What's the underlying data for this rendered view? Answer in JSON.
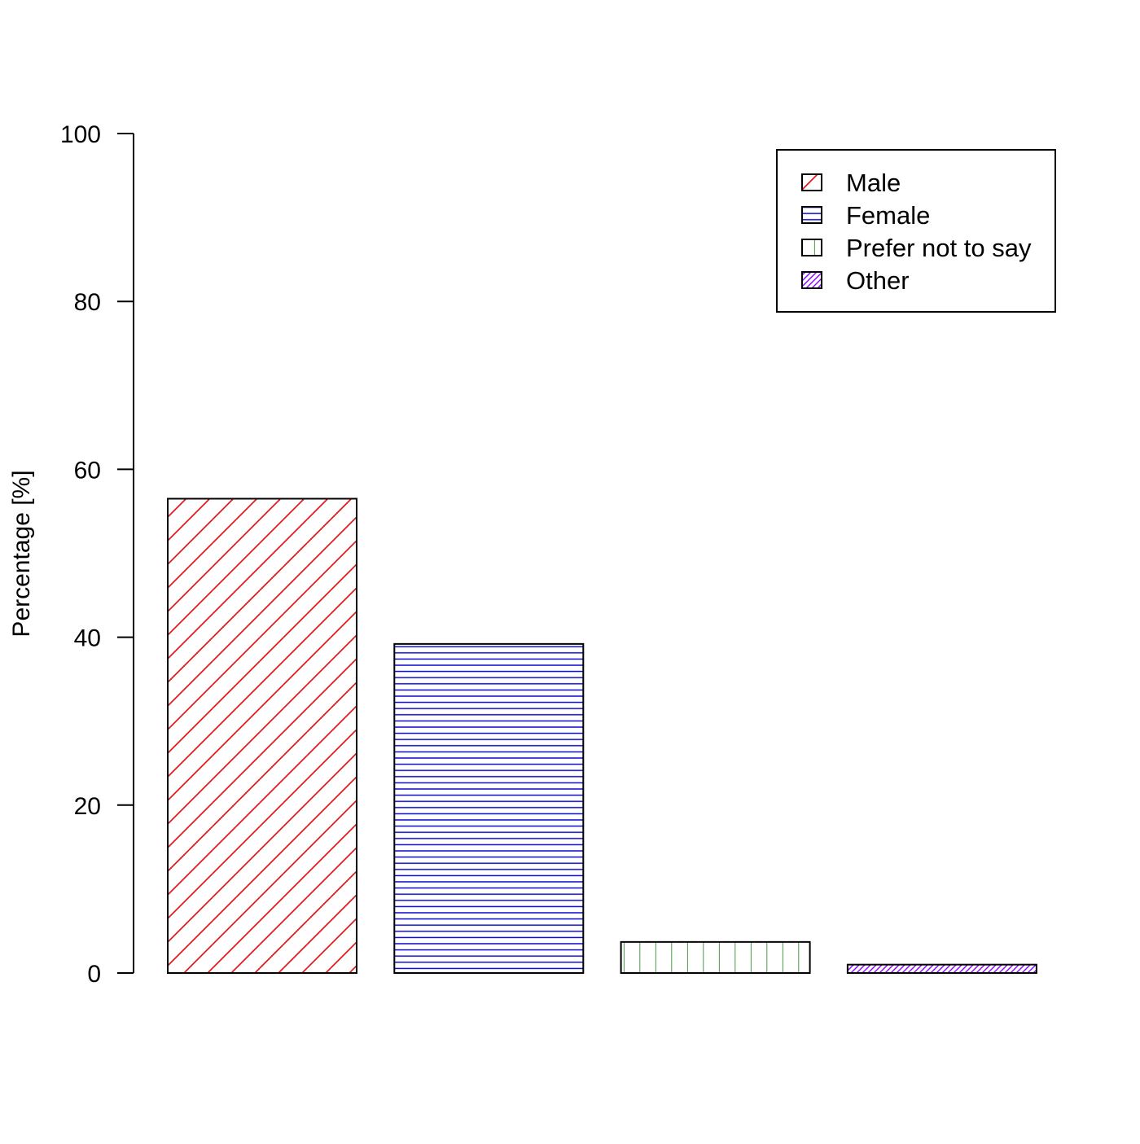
{
  "chart_data": {
    "type": "bar",
    "categories": [
      "Male",
      "Female",
      "Prefer not to say",
      "Other"
    ],
    "series": [
      {
        "values": [
          56.5,
          39.2,
          3.7,
          1.0
        ]
      }
    ],
    "xlabel": "",
    "ylabel": "Percentage [%]",
    "ylim": [
      0,
      100
    ],
    "yticks": [
      0,
      20,
      40,
      60,
      80,
      100
    ],
    "ytick_labels": [
      "0",
      "20",
      "40",
      "60",
      "80",
      "100"
    ],
    "grid": false,
    "legend": {
      "position": "top-right",
      "entries": [
        "Male",
        "Female",
        "Prefer not to say",
        "Other"
      ]
    },
    "styles": [
      {
        "color": "#e41a1c",
        "pattern": "diagonal"
      },
      {
        "color": "#0000cc",
        "pattern": "horizontal"
      },
      {
        "color": "#1a7f1a",
        "pattern": "vertical"
      },
      {
        "color": "#8a00ff",
        "pattern": "dense-diagonal"
      }
    ]
  }
}
